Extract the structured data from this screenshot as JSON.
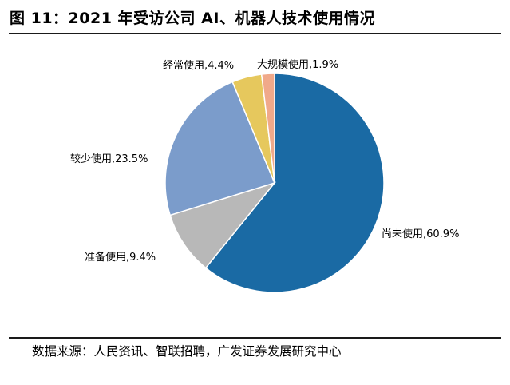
{
  "title": "图 11：2021 年受访公司 AI、机器人技术使用情况",
  "source": "数据来源：人民资讯、智联招聘，广发证券发展研究中心",
  "chart_data": {
    "type": "pie",
    "slices": [
      {
        "name": "尚未使用",
        "value": 60.9,
        "display": "60.9%",
        "color": "#1a6aa4"
      },
      {
        "name": "准备使用",
        "value": 9.4,
        "display": "9.4%",
        "color": "#b8b8b8"
      },
      {
        "name": "较少使用",
        "value": 23.5,
        "display": "23.5%",
        "color": "#7b9ccb"
      },
      {
        "name": "经常使用",
        "value": 4.4,
        "display": "4.4%",
        "color": "#e6c85d"
      },
      {
        "name": "大规模使用",
        "value": 1.9,
        "display": "1.9%",
        "color": "#f0a98a"
      }
    ],
    "legend": "none"
  }
}
